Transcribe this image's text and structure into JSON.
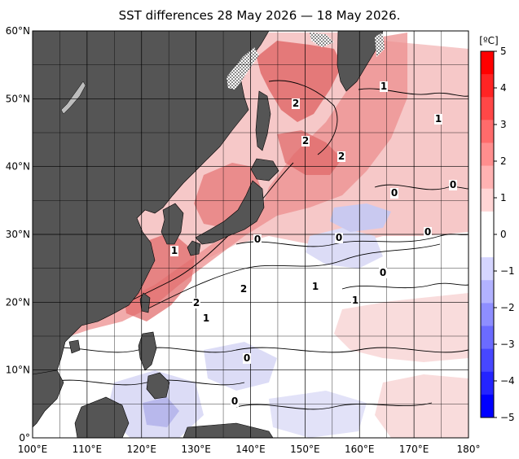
{
  "title": "SST differences 28 May 2026 — 18 May 2026.",
  "map": {
    "lat_labels": [
      "60°N",
      "50°N",
      "40°N",
      "30°N",
      "20°N",
      "10°N",
      "0°"
    ],
    "lon_labels": [
      "100°E",
      "110°E",
      "120°E",
      "130°E",
      "140°E",
      "150°E",
      "160°E",
      "170°E",
      "180°"
    ],
    "contour_labels": [
      "2",
      "2",
      "2",
      "1",
      "1",
      "0",
      "0",
      "0",
      "0",
      "1",
      "0",
      "1",
      "0",
      "2",
      "2",
      "1",
      "0",
      "0",
      "1"
    ],
    "colors": {
      "land": "#555555",
      "ocean_white": "#ffffff",
      "warm_light": "#f6c8c8",
      "warm_mid": "#ec8f8f",
      "warm_strong": "#e06565",
      "cool_light": "#dcdcf6",
      "cool_mid": "#b8b8ec"
    }
  },
  "colorbar": {
    "unit": "[ºC]",
    "ticks": [
      "5",
      "4",
      "3",
      "2",
      "1",
      "0",
      "−1",
      "−2",
      "−3",
      "−4",
      "−5"
    ],
    "colors": [
      "#ff0000",
      "#ff2424",
      "#ff4747",
      "#ff6b6b",
      "#ff8e8e",
      "#ffb2b2",
      "#ffd5d5",
      "#ffffff",
      "#ffffff",
      "#d5d5ff",
      "#b2b2ff",
      "#8e8eff",
      "#6b6bff",
      "#4747ff",
      "#2424ff",
      "#0000ff"
    ]
  }
}
